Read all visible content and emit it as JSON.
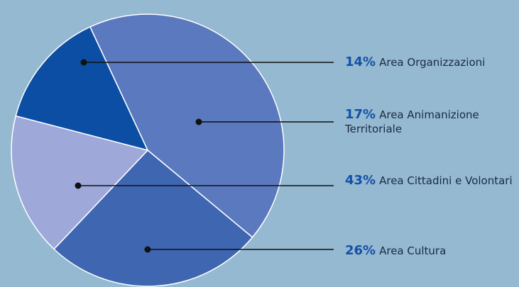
{
  "chart_data": {
    "type": "pie",
    "categories": [
      "Area Cittadini e Volontari",
      "Area Cultura",
      "Area Animanizione Territoriale",
      "Area Organizzazioni"
    ],
    "values": [
      43,
      26,
      17,
      14
    ],
    "value_labels": [
      "43%",
      "26%",
      "17%",
      "14%"
    ],
    "colors": [
      "#5b79bf",
      "#3f66b1",
      "#9ea8d9",
      "#0b4ea3"
    ]
  }
}
